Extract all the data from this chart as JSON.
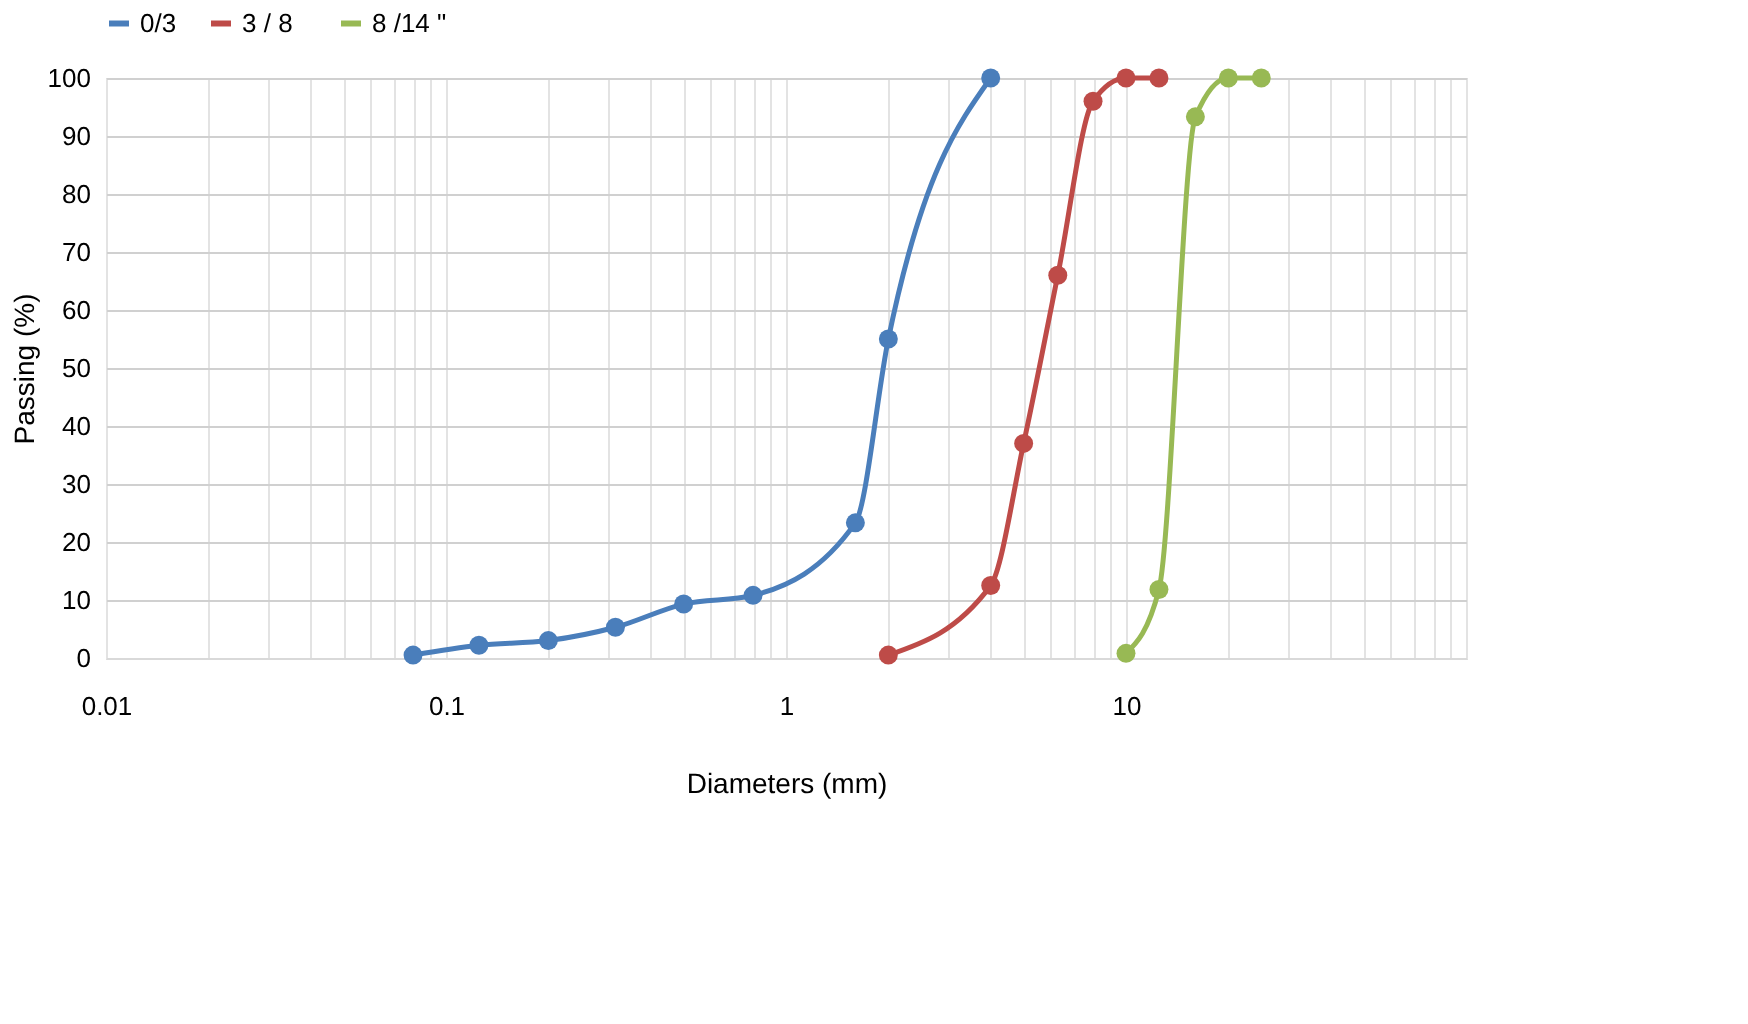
{
  "chart_data": {
    "type": "line",
    "xlabel": "Diameters (mm)",
    "ylabel": "Passing (%)",
    "log": "x",
    "grid": true,
    "legend": "top",
    "marker": "circle",
    "line_style": "solid",
    "xlim": [
      0.01,
      100
    ],
    "ylim": [
      0,
      100
    ],
    "yticks": [
      0,
      10,
      20,
      30,
      40,
      50,
      60,
      70,
      80,
      90,
      100
    ],
    "xticks": [
      0.01,
      {
        "value": 0.02,
        "label": null
      },
      {
        "value": 0.03,
        "label": null
      },
      {
        "value": 0.04,
        "label": null
      },
      {
        "value": 0.05,
        "label": null
      },
      {
        "value": 0.06,
        "label": null
      },
      {
        "value": 0.07,
        "label": null
      },
      {
        "value": 0.08,
        "label": null
      },
      {
        "value": 0.09,
        "label": null
      },
      0.1,
      {
        "value": 0.2,
        "label": null
      },
      {
        "value": 0.3,
        "label": null
      },
      {
        "value": 0.4,
        "label": null
      },
      {
        "value": 0.5,
        "label": null
      },
      {
        "value": 0.6,
        "label": null
      },
      {
        "value": 0.7,
        "label": null
      },
      {
        "value": 0.8,
        "label": null
      },
      {
        "value": 0.9,
        "label": null
      },
      1,
      {
        "value": 2,
        "label": null
      },
      {
        "value": 3,
        "label": null
      },
      {
        "value": 4,
        "label": null
      },
      {
        "value": 5,
        "label": null
      },
      {
        "value": 6,
        "label": null
      },
      {
        "value": 7,
        "label": null
      },
      {
        "value": 8,
        "label": null
      },
      {
        "value": 9,
        "label": null
      },
      10,
      {
        "value": 20,
        "label": null
      },
      {
        "value": 30,
        "label": null
      },
      {
        "value": 40,
        "label": null
      },
      {
        "value": 50,
        "label": null
      },
      {
        "value": 60,
        "label": null
      },
      {
        "value": 70,
        "label": null
      },
      {
        "value": 80,
        "label": null
      },
      {
        "value": 90,
        "label": null
      },
      {
        "value": 100,
        "label": null
      }
    ],
    "series": [
      {
        "name": "0/3",
        "color": "#4a7ebb",
        "x": [
          0.08,
          0.125,
          0.2,
          0.315,
          0.5,
          0.8,
          1.6,
          2,
          4
        ],
        "values": [
          0.5,
          2.2,
          3,
          5.3,
          9.3,
          10.8,
          23.3,
          55,
          100
        ]
      },
      {
        "name": "3  /  8",
        "color": "#be4b48",
        "x": [
          2,
          4,
          5,
          6.3,
          8,
          10,
          12.5
        ],
        "values": [
          0.5,
          12.5,
          37,
          66,
          96,
          100,
          100
        ]
      },
      {
        "name": "8 /14  \"",
        "color": "#98b954",
        "x": [
          10,
          12.5,
          16,
          20,
          25
        ],
        "values": [
          0.8,
          11.8,
          93.3,
          100,
          100
        ]
      }
    ]
  }
}
